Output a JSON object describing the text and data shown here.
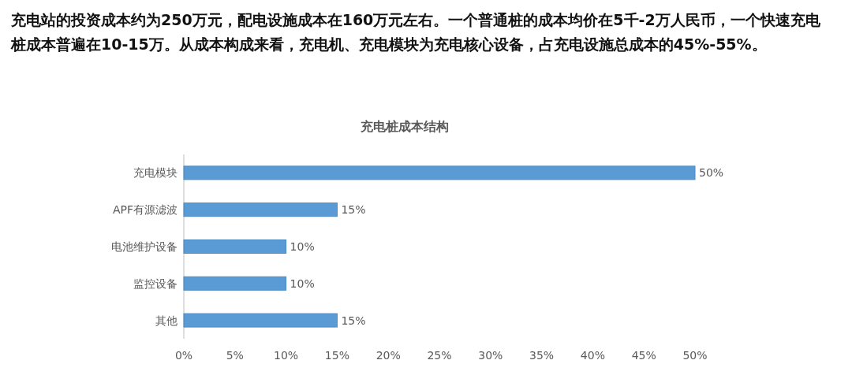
{
  "chart_data": {
    "type": "bar",
    "orientation": "horizontal",
    "title": "充电桩成本结构",
    "annotations": [
      "充电站的投资成本约为250万元，配电设施成本在160万元左右。一个普通桩的成本均价在5千-2万人民币，一个快速充电桩成本普遍在10-15万。从成本构成来看，充电机、充电模块为充电核心设备，占充电设施总成本的45%-55%。"
    ],
    "categories": [
      "充电模块",
      "APF有源滤波",
      "电池维护设备",
      "监控设备",
      "其他"
    ],
    "values": [
      50,
      15,
      10,
      10,
      15
    ],
    "value_labels": [
      "50%",
      "15%",
      "10%",
      "10%",
      "15%"
    ],
    "color": "#5b9bd5",
    "xlim": [
      0,
      50
    ],
    "xticks": [
      {
        "value": 0,
        "label": "0%"
      },
      {
        "value": 5,
        "label": "5%"
      },
      {
        "value": 10,
        "label": "10%"
      },
      {
        "value": 15,
        "label": "15%"
      },
      {
        "value": 20,
        "label": "20%"
      },
      {
        "value": 25,
        "label": "25%"
      },
      {
        "value": 30,
        "label": "30%"
      },
      {
        "value": 35,
        "label": "35%"
      },
      {
        "value": 40,
        "label": "40%"
      },
      {
        "value": 45,
        "label": "45%"
      },
      {
        "value": 50,
        "label": "50%"
      }
    ],
    "grid": false
  }
}
